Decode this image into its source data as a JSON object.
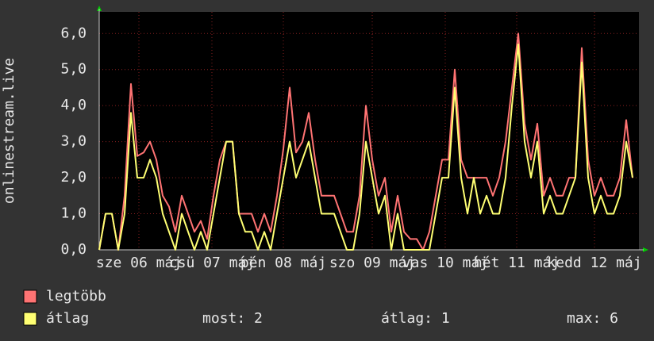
{
  "chart_data": {
    "type": "line",
    "y_label": "onlinestream.live",
    "x": [
      0,
      2,
      4,
      6,
      8,
      10,
      12,
      14,
      16,
      18,
      20,
      22,
      24,
      26,
      28,
      30,
      32,
      34,
      36,
      38,
      40,
      42,
      44,
      46,
      48,
      50,
      52,
      54,
      56,
      58,
      60,
      62,
      64,
      66,
      68,
      70,
      72,
      74,
      76,
      78,
      80,
      82,
      84,
      86,
      88,
      90,
      92,
      94,
      96,
      98,
      100,
      102,
      104,
      106,
      108,
      110,
      112,
      114,
      116,
      118,
      120,
      122,
      124,
      126,
      128,
      130,
      132,
      134,
      136,
      138,
      140,
      142,
      144,
      146,
      148,
      150,
      152,
      154,
      156,
      158,
      160,
      162,
      164,
      166,
      168
    ],
    "xlim": [
      0,
      170
    ],
    "xticks": [
      {
        "value": 12.5,
        "label": "sze 06 máj"
      },
      {
        "value": 35.5,
        "label": "csü 07 máj"
      },
      {
        "value": 58,
        "label": "pén 08 máj"
      },
      {
        "value": 86,
        "label": "szo 09 máj"
      },
      {
        "value": 109,
        "label": "vas 10 máj"
      },
      {
        "value": 131.5,
        "label": "hét 11 máj"
      },
      {
        "value": 156,
        "label": "kedd 12 máj"
      }
    ],
    "ylim": [
      0,
      6.6
    ],
    "yticks": [
      {
        "value": 0,
        "label": "0,0"
      },
      {
        "value": 1,
        "label": "1,0"
      },
      {
        "value": 2,
        "label": "2,0"
      },
      {
        "value": 3,
        "label": "3,0"
      },
      {
        "value": 4,
        "label": "4,0"
      },
      {
        "value": 5,
        "label": "5,0"
      },
      {
        "value": 6,
        "label": "6,0"
      }
    ],
    "grid": true,
    "series": [
      {
        "name": "legtöbb",
        "color": "#ff7373",
        "values": [
          0,
          1,
          1,
          0,
          1.5,
          4.6,
          2.6,
          2.7,
          3,
          2.5,
          1.5,
          1.2,
          0.5,
          1.5,
          1,
          0.5,
          0.8,
          0.3,
          1.5,
          2.5,
          3,
          3,
          1,
          1,
          1,
          0.5,
          1,
          0.5,
          1.5,
          2.8,
          4.5,
          2.7,
          3,
          3.8,
          2.5,
          1.5,
          1.5,
          1.5,
          1,
          0.5,
          0.5,
          1.5,
          4,
          2.5,
          1.5,
          2,
          0.5,
          1.5,
          0.5,
          0.3,
          0.3,
          0,
          0.5,
          1.5,
          2.5,
          2.5,
          5,
          2.5,
          2,
          2,
          2,
          2,
          1.5,
          2,
          3,
          4.5,
          6,
          3.5,
          2.5,
          3.5,
          1.5,
          2,
          1.5,
          1.5,
          2,
          2,
          5.6,
          2.5,
          1.5,
          2,
          1.5,
          1.5,
          2,
          3.6,
          2
        ]
      },
      {
        "name": "átlag",
        "color": "#ffff73",
        "values": [
          0,
          1,
          1,
          0,
          1,
          3.8,
          2,
          2,
          2.5,
          2,
          1,
          0.5,
          0,
          1,
          0.5,
          0,
          0.5,
          0,
          1,
          2,
          3,
          3,
          1,
          0.5,
          0.5,
          0,
          0.5,
          0,
          1,
          2,
          3,
          2,
          2.5,
          3,
          2,
          1,
          1,
          1,
          0.5,
          0,
          0,
          1,
          3,
          2,
          1,
          1.5,
          0,
          1,
          0,
          0,
          0,
          0,
          0,
          1,
          2,
          2,
          4.5,
          2,
          1,
          2,
          1,
          1.5,
          1,
          1,
          2,
          4,
          5.7,
          3,
          2,
          3,
          1,
          1.5,
          1,
          1,
          1.5,
          2,
          5.2,
          2,
          1,
          1.5,
          1,
          1,
          1.5,
          3,
          2
        ]
      }
    ],
    "stats": [
      "most: 2",
      "átlag: 1",
      "max: 6"
    ]
  }
}
